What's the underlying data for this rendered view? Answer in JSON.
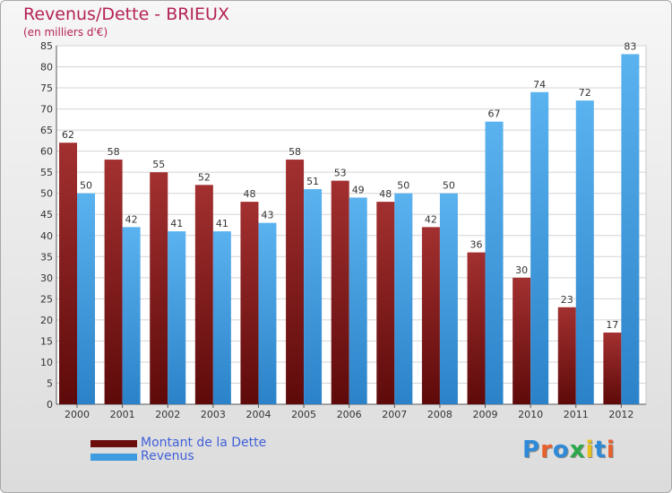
{
  "title": "Revenus/Dette - BRIEUX",
  "subtitle": "(en milliers d'€)",
  "logo_text": "Proxiti",
  "colors": {
    "title": "#b52257",
    "dette": "#7a1414",
    "revenus": "#3f9be0",
    "legend_text": "#4060d8"
  },
  "legend": {
    "items": [
      {
        "label": "Montant de la Dette",
        "color": "#6b0d0d"
      },
      {
        "label": "Revenus",
        "color": "#3f9be0"
      }
    ]
  },
  "chart_data": {
    "type": "bar",
    "categories": [
      "2000",
      "2001",
      "2002",
      "2003",
      "2004",
      "2005",
      "2006",
      "2007",
      "2008",
      "2009",
      "2010",
      "2011",
      "2012"
    ],
    "series": [
      {
        "name": "Montant de la Dette",
        "values": [
          62,
          58,
          55,
          52,
          48,
          58,
          53,
          48,
          42,
          36,
          30,
          23,
          17
        ]
      },
      {
        "name": "Revenus",
        "values": [
          50,
          42,
          41,
          41,
          43,
          51,
          49,
          50,
          50,
          67,
          74,
          72,
          83
        ]
      }
    ],
    "ylim": [
      0,
      85
    ],
    "yticks": [
      0,
      5,
      10,
      15,
      20,
      25,
      30,
      35,
      40,
      45,
      50,
      55,
      60,
      65,
      70,
      75,
      80,
      85
    ],
    "grid": true,
    "legend_position": "bottom-left"
  }
}
